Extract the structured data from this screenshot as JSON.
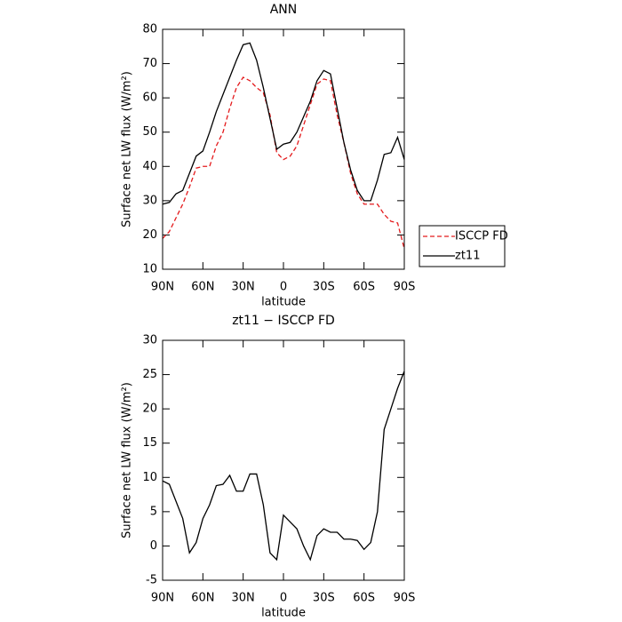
{
  "chart_data": [
    {
      "type": "line",
      "title": "ANN",
      "x_label": "latitude",
      "y_label": "Surface net LW flux (W/m²)",
      "x": [
        90,
        85,
        80,
        75,
        70,
        65,
        60,
        55,
        50,
        45,
        40,
        35,
        30,
        25,
        20,
        15,
        10,
        5,
        0,
        -5,
        -10,
        -15,
        -20,
        -25,
        -30,
        -35,
        -40,
        -45,
        -50,
        -55,
        -60,
        -65,
        -70,
        -75,
        -80,
        -85,
        -90
      ],
      "series": [
        {
          "name": "ISCCP FD",
          "color": "#e41a1c",
          "dash": true,
          "values": [
            19,
            21,
            25,
            29,
            34,
            39.5,
            40,
            40,
            46,
            50,
            57,
            63,
            66,
            65,
            63,
            61.5,
            55,
            44,
            42,
            43,
            46,
            52,
            58,
            64,
            65.5,
            65,
            55,
            47,
            38,
            32,
            29,
            29,
            29,
            26,
            24,
            23.5,
            16
          ]
        },
        {
          "name": "zt11",
          "color": "#000000",
          "dash": false,
          "values": [
            29,
            29.5,
            32,
            33,
            38,
            43,
            44.5,
            50,
            56,
            61,
            66,
            71,
            75.5,
            76,
            71,
            63,
            54,
            45,
            46.5,
            47,
            50,
            54.5,
            59,
            65,
            68,
            67,
            57,
            47,
            39,
            33,
            30,
            30,
            36,
            43.5,
            44,
            48.5,
            42
          ]
        }
      ],
      "xlim": [
        90,
        -90
      ],
      "xticks": [
        {
          "value": 90,
          "label": "90N"
        },
        {
          "value": 60,
          "label": "60N"
        },
        {
          "value": 30,
          "label": "30N"
        },
        0,
        {
          "value": -30,
          "label": "30S"
        },
        {
          "value": -60,
          "label": "60S"
        },
        {
          "value": -90,
          "label": "90S"
        }
      ],
      "ylim": [
        10,
        80
      ],
      "yticks": [
        10,
        20,
        30,
        40,
        50,
        60,
        70,
        80
      ],
      "legend": "right"
    },
    {
      "type": "line",
      "title": "zt11 − ISCCP FD",
      "x_label": "latitude",
      "y_label": "Surface net LW flux (W/m²)",
      "x": [
        90,
        85,
        80,
        75,
        70,
        65,
        60,
        55,
        50,
        45,
        40,
        35,
        30,
        25,
        20,
        15,
        10,
        5,
        0,
        -5,
        -10,
        -15,
        -20,
        -25,
        -30,
        -35,
        -40,
        -45,
        -50,
        -55,
        -60,
        -65,
        -70,
        -75,
        -80,
        -85,
        -90
      ],
      "values": [
        9.5,
        9,
        6.5,
        4,
        -1,
        0.5,
        4,
        6,
        8.8,
        9,
        10.3,
        8,
        8,
        10.5,
        10.5,
        6,
        -1,
        -2,
        4.5,
        3.5,
        2.5,
        0,
        -2,
        1.5,
        2.5,
        2,
        2,
        1,
        1,
        0.8,
        -0.5,
        0.5,
        5,
        17,
        20,
        23,
        25.5
      ],
      "color": "#000000",
      "xlim": [
        90,
        -90
      ],
      "xticks": [
        {
          "value": 90,
          "label": "90N"
        },
        {
          "value": 60,
          "label": "60N"
        },
        {
          "value": 30,
          "label": "30N"
        },
        0,
        {
          "value": -30,
          "label": "30S"
        },
        {
          "value": -60,
          "label": "60S"
        },
        {
          "value": -90,
          "label": "90S"
        }
      ],
      "ylim": [
        -5,
        30
      ],
      "yticks": [
        -5,
        0,
        5,
        10,
        15,
        20,
        25,
        30
      ]
    }
  ]
}
